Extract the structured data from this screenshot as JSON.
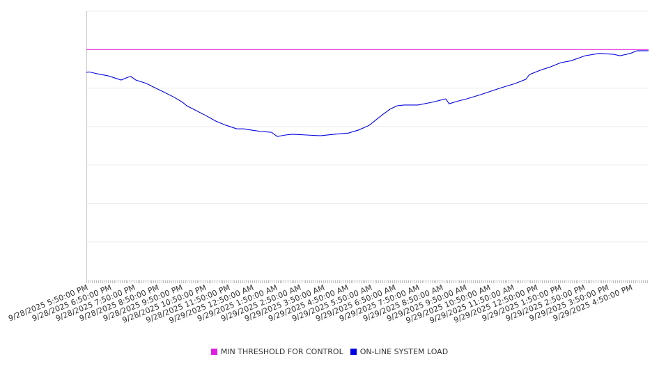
{
  "chart_data": {
    "type": "line",
    "title": "",
    "xlabel": "",
    "ylabel": "",
    "x_unit": "hours since 9/28/2025 5:50:00 PM",
    "xlim": [
      0,
      23.74
    ],
    "ylim": [
      0,
      7
    ],
    "grid": true,
    "legend_placement": "bottom",
    "x_tick_labels": [
      "9/28/2025 5:50:00 PM",
      "9/28/2025 6:50:00 PM",
      "9/28/2025 7:50:00 PM",
      "9/28/2025 8:50:00 PM",
      "9/28/2025 9:50:00 PM",
      "9/28/2025 10:50:00 PM",
      "9/28/2025 11:50:00 PM",
      "9/29/2025 12:50:00 AM",
      "9/29/2025 1:50:00 AM",
      "9/29/2025 2:50:00 AM",
      "9/29/2025 3:50:00 AM",
      "9/29/2025 4:50:00 AM",
      "9/29/2025 5:50:00 AM",
      "9/29/2025 6:50:00 AM",
      "9/29/2025 7:50:00 AM",
      "9/29/2025 8:50:00 AM",
      "9/29/2025 9:50:00 AM",
      "9/29/2025 10:50:00 AM",
      "9/29/2025 11:50:00 AM",
      "9/29/2025 12:50:00 PM",
      "9/29/2025 1:50:00 PM",
      "9/29/2025 2:50:00 PM",
      "9/29/2025 3:50:00 PM",
      "9/29/2025 4:50:00 PM"
    ],
    "series": [
      {
        "name": "MIN THRESHOLD FOR CONTROL",
        "color": "#e020e0",
        "x": [
          0,
          23.74
        ],
        "y": [
          6.0,
          6.0
        ]
      },
      {
        "name": "ON-LINE SYSTEM LOAD",
        "color": "#0000e0",
        "x": [
          0,
          0.12,
          0.47,
          0.91,
          1.21,
          1.47,
          1.74,
          1.88,
          2.09,
          2.53,
          2.82,
          3.26,
          3.71,
          4.06,
          4.24,
          4.59,
          5.03,
          5.47,
          5.91,
          6.35,
          6.65,
          6.94,
          7.38,
          7.82,
          8.06,
          8.41,
          8.71,
          9.29,
          9.88,
          10.47,
          11.06,
          11.5,
          11.94,
          12.24,
          12.53,
          12.82,
          13.12,
          13.41,
          14,
          14.59,
          15.18,
          15.32,
          15.62,
          16.06,
          16.65,
          17.09,
          17.53,
          18.12,
          18.56,
          18.71,
          19.15,
          19.59,
          20.03,
          20.47,
          21.06,
          21.65,
          22.24,
          22.53,
          22.97,
          23.26,
          23.74
        ],
        "y": [
          5.41,
          5.42,
          5.37,
          5.32,
          5.26,
          5.21,
          5.28,
          5.3,
          5.21,
          5.12,
          5.03,
          4.9,
          4.76,
          4.63,
          4.54,
          4.43,
          4.29,
          4.14,
          4.03,
          3.94,
          3.94,
          3.91,
          3.87,
          3.85,
          3.74,
          3.78,
          3.8,
          3.78,
          3.76,
          3.8,
          3.83,
          3.91,
          4.03,
          4.18,
          4.32,
          4.45,
          4.54,
          4.56,
          4.56,
          4.63,
          4.72,
          4.59,
          4.65,
          4.72,
          4.83,
          4.92,
          5.01,
          5.12,
          5.23,
          5.35,
          5.46,
          5.55,
          5.66,
          5.71,
          5.84,
          5.9,
          5.88,
          5.84,
          5.9,
          5.97,
          5.97
        ]
      }
    ]
  }
}
